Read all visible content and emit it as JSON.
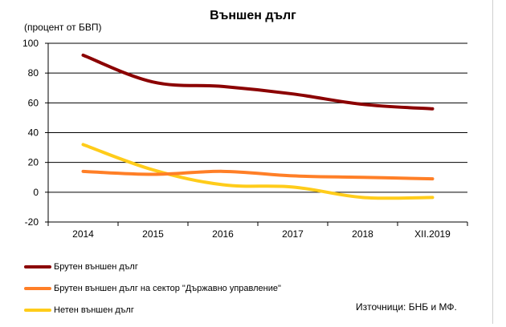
{
  "title": "Външен дълг",
  "unit_label": "(процент от БВП)",
  "source": "Източници: БНБ и МФ.",
  "chart_data": {
    "type": "line",
    "title": "Външен дълг",
    "ylabel": "(процент от БВП)",
    "categories": [
      "2014",
      "2015",
      "2016",
      "2017",
      "2018",
      "XII.2019"
    ],
    "ylim": [
      -20,
      100
    ],
    "yticks": [
      -20,
      0,
      20,
      40,
      60,
      80,
      100
    ],
    "grid": true,
    "legend_position": "bottom",
    "series": [
      {
        "name": "Брутен външен дълг",
        "color": "#8b0000",
        "values": [
          92,
          74,
          71,
          66,
          59,
          56
        ]
      },
      {
        "name": "Брутен външен дълг на сектор \"Държавно управление\"",
        "color": "#ff7f27",
        "values": [
          14,
          12,
          14,
          11,
          10,
          9
        ]
      },
      {
        "name": "Нетен външен дълг",
        "color": "#ffcc1a",
        "values": [
          32,
          15,
          5,
          3.5,
          -3.5,
          -3.5
        ]
      }
    ]
  }
}
